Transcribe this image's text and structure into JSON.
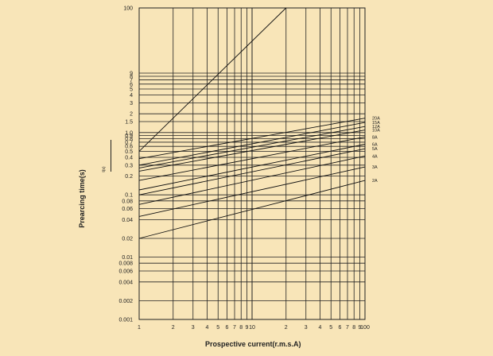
{
  "chart_data": {
    "type": "line",
    "title": "",
    "xlabel": "Prospective current(r.m.s.A)",
    "ylabel": "Prearcing time(s)",
    "side_label": "t(s)",
    "xscale": "log",
    "yscale": "log",
    "xlim": [
      1,
      100
    ],
    "ylim": [
      0.001,
      100
    ],
    "grid": true,
    "x_ticks": [
      "1",
      "2",
      "3",
      "4",
      "5",
      "6",
      "7",
      "8",
      "9",
      "10",
      "2",
      "3",
      "4",
      "5",
      "6",
      "7",
      "8",
      "9",
      "100"
    ],
    "y_ticks": [
      "100",
      "9",
      "8",
      "7",
      "6",
      "5",
      "4",
      "3",
      "2",
      "1.5",
      "1.0",
      "0.9",
      "0.8",
      "0.7",
      "0.6",
      "0.5",
      "0.4",
      "0.3",
      "0.2",
      "0.1",
      "0.08",
      "0.06",
      "0.04",
      "0.02",
      "0.01",
      "0.008",
      "0.006",
      "0.004",
      "0.002",
      "0.001"
    ],
    "series": [
      {
        "name": "20A",
        "x": [
          1,
          100
        ],
        "y": [
          0.38,
          1.7
        ]
      },
      {
        "name": "15A",
        "x": [
          1,
          100
        ],
        "y": [
          0.3,
          1.45
        ]
      },
      {
        "name": "12A",
        "x": [
          1,
          100
        ],
        "y": [
          0.27,
          1.25
        ]
      },
      {
        "name": "10A",
        "x": [
          1,
          100
        ],
        "y": [
          0.24,
          1.1
        ]
      },
      {
        "name": "8A",
        "x": [
          1,
          100
        ],
        "y": [
          0.17,
          0.85
        ]
      },
      {
        "name": "6A",
        "x": [
          1,
          100
        ],
        "y": [
          0.12,
          0.65
        ]
      },
      {
        "name": "5A",
        "x": [
          1,
          100
        ],
        "y": [
          0.1,
          0.55
        ]
      },
      {
        "name": "4A",
        "x": [
          1,
          100
        ],
        "y": [
          0.07,
          0.42
        ]
      },
      {
        "name": "3A",
        "x": [
          1,
          100
        ],
        "y": [
          0.045,
          0.28
        ]
      },
      {
        "name": "2A",
        "x": [
          1,
          100
        ],
        "y": [
          0.02,
          0.17
        ]
      },
      {
        "name": "",
        "x": [
          1,
          20
        ],
        "y": [
          0.5,
          100
        ]
      }
    ]
  }
}
